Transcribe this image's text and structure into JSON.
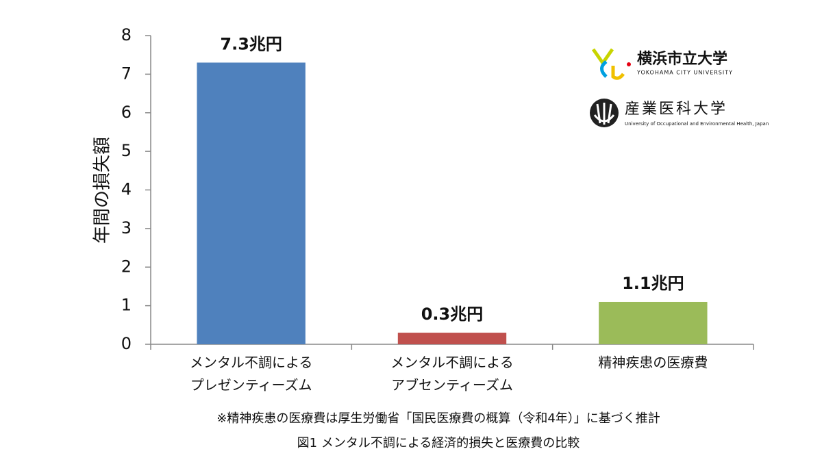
{
  "chart_data": {
    "type": "bar",
    "y_axis_label": "年間の損失額",
    "categories": [
      [
        "メンタル不調による",
        "プレゼンティーズム"
      ],
      [
        "メンタル不調による",
        "アブセンティーズム"
      ],
      [
        "精神疾患の医療費"
      ]
    ],
    "values": [
      7.3,
      0.3,
      1.1
    ],
    "value_labels": [
      "7.3兆円",
      "0.3兆円",
      "1.1兆円"
    ],
    "colors": [
      "#4f81bd",
      "#c0504d",
      "#9bbb59"
    ],
    "ylim": [
      0,
      8
    ],
    "yticks": [
      0,
      1,
      2,
      3,
      4,
      5,
      6,
      7,
      8
    ],
    "grid": false,
    "footnote": "※精神疾患の医療費は厚生労働省「国民医療費の概算（令和4年）」に基づく推計",
    "caption": "図1 メンタル不調による経済的損失と医療費の比較",
    "logos": [
      {
        "name": "横浜市立大学",
        "subtitle": "YOKOHAMA CITY UNIVERSITY"
      },
      {
        "name": "産業医科大学",
        "subtitle": "University of Occupational and Environmental Health, Japan"
      }
    ]
  }
}
